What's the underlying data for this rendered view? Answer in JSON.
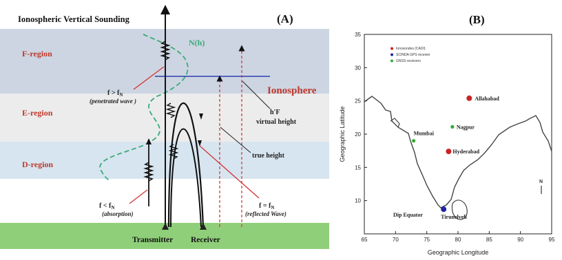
{
  "panel_a": {
    "title": "Ionospheric Vertical Sounding",
    "label": "(A)",
    "regions": {
      "f": "F-region",
      "e": "E-region",
      "d": "D-region"
    },
    "profile_label": "N(h)",
    "ionosphere_label": "Ionosphere",
    "penetrated": {
      "line1": "f > f",
      "sub": "N",
      "line2": "(penetrated wave )"
    },
    "absorption": {
      "line1": "f < f",
      "sub": "N",
      "line2": "(absorption)"
    },
    "reflected": {
      "line1": "f = f",
      "sub": "N",
      "line2": "(reflected Wave)"
    },
    "virtual_height": {
      "line1": "h'F",
      "line2": "virtual height"
    },
    "true_height": "true height",
    "transmitter": "Transmitter",
    "receiver": "Receiver",
    "colors": {
      "f_band": "#cdd5e2",
      "e_band": "#ececec",
      "d_band": "#d7e5f0",
      "ground": "#8fcf7a",
      "profile": "#3aaa78",
      "region_text": "#c0392b"
    }
  },
  "panel_b": {
    "label": "(B)",
    "xlabel": "Geographic Longitude",
    "ylabel": "Geographic Latitude",
    "x_ticks": [
      "65",
      "70",
      "75",
      "80",
      "85",
      "90",
      "95"
    ],
    "y_ticks": [
      "35",
      "30",
      "25",
      "20",
      "15",
      "10"
    ],
    "legend": [
      {
        "text": "Ionosondes (CADI)",
        "color": "#cc2222"
      },
      {
        "text": "SCINDA GPS receiver",
        "color": "#2222aa"
      },
      {
        "text": "GNSS receivers",
        "color": "#33aa33"
      }
    ],
    "stations": [
      {
        "name": "Allahabad",
        "lon": 81.8,
        "lat": 25.4,
        "color": "#cc2222"
      },
      {
        "name": "Nagpur",
        "lon": 79.1,
        "lat": 21.1,
        "color": "#33aa33"
      },
      {
        "name": "Mumbai",
        "lon": 72.9,
        "lat": 19.0,
        "color": "#33aa33"
      },
      {
        "name": "Hyderabad",
        "lon": 78.5,
        "lat": 17.4,
        "color": "#cc2222"
      },
      {
        "name": "Tirunelveli",
        "lon": 77.7,
        "lat": 8.7,
        "color": "#2222aa"
      }
    ],
    "dip_equator_label": "Dip Equator",
    "north_arrow": "N"
  }
}
